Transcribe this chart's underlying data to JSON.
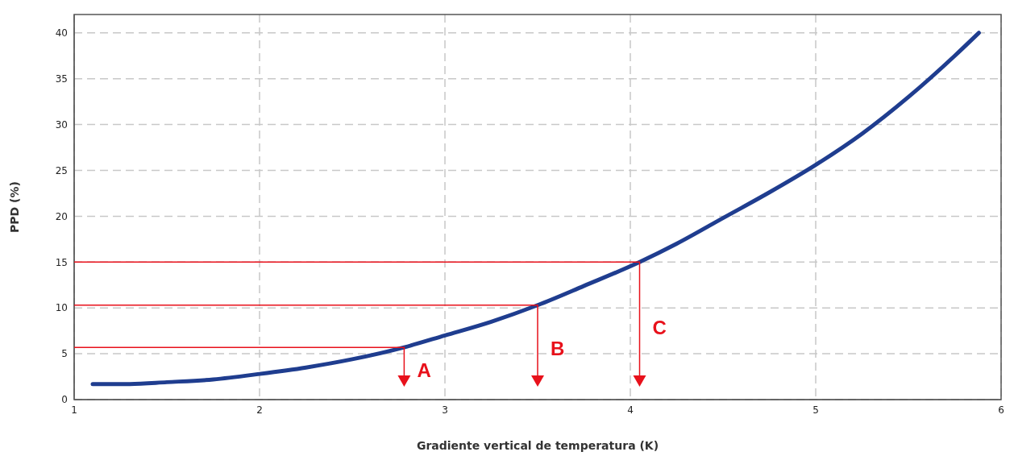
{
  "chart_data": {
    "type": "line",
    "xlabel": "Gradiente vertical de temperatura (K)",
    "ylabel": "PPD (%)",
    "x": [
      1.1,
      1.3,
      1.5,
      1.75,
      2,
      2.25,
      2.5,
      2.78,
      3,
      3.25,
      3.5,
      3.75,
      4.05,
      4.25,
      4.5,
      4.75,
      5,
      5.25,
      5.5,
      5.75,
      5.88
    ],
    "series": [
      {
        "color": "#1f3d8f",
        "values": [
          1.7,
          1.7,
          1.9,
          2.2,
          2.8,
          3.5,
          4.4,
          5.7,
          7,
          8.5,
          10.3,
          12.4,
          15,
          17,
          19.8,
          22.6,
          25.6,
          29,
          33,
          37.5,
          40
        ]
      }
    ],
    "xlim": [
      1,
      6
    ],
    "xticks": [
      1,
      2,
      3,
      4,
      5,
      6
    ],
    "ylim": [
      0,
      42
    ],
    "yticks": [
      0,
      5,
      10,
      15,
      20,
      25,
      30,
      35,
      40
    ],
    "grid": true,
    "marker": "none",
    "line_style": "solid",
    "annotations": [
      {
        "text": "A",
        "x": 2.78,
        "y": 5.7
      },
      {
        "text": "B",
        "x": 3.5,
        "y": 10.3
      },
      {
        "text": "C",
        "x": 4.05,
        "y": 15
      }
    ]
  }
}
